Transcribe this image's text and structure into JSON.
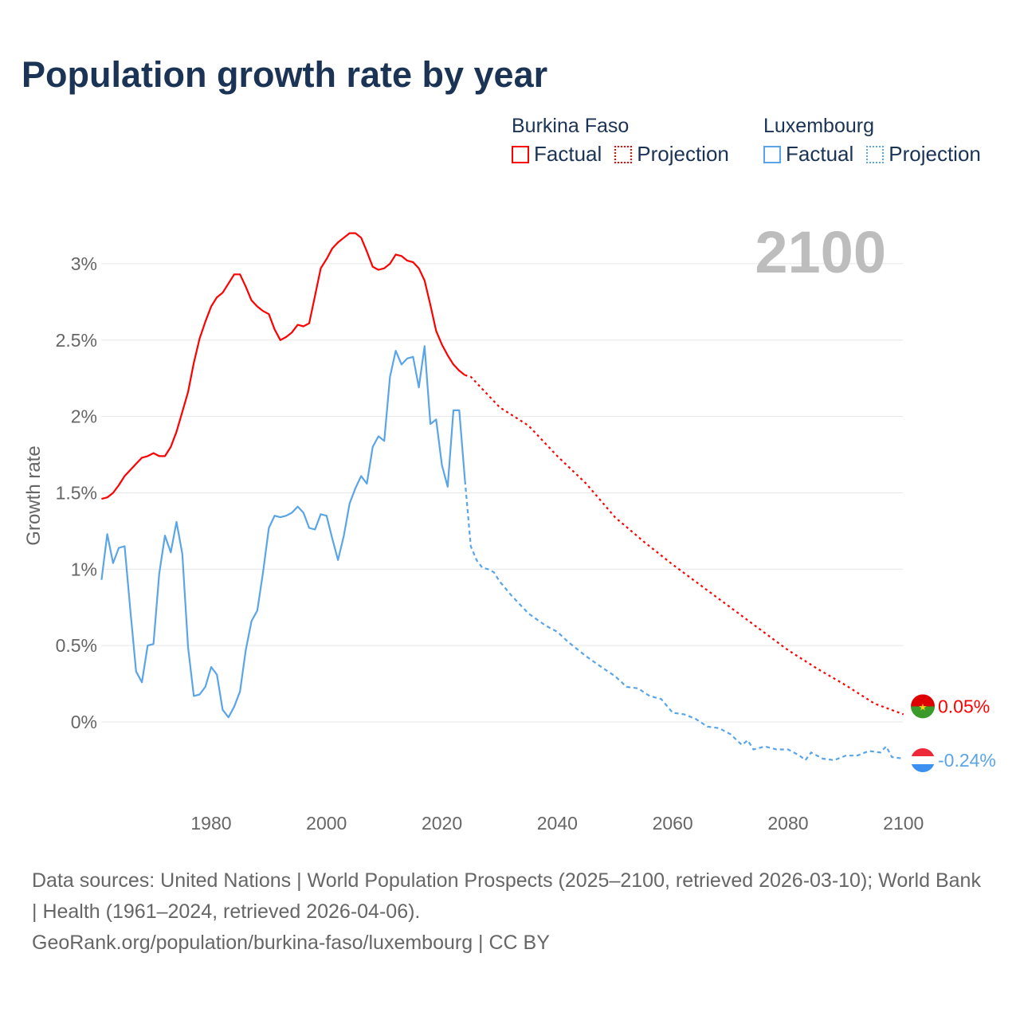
{
  "title": "Population growth rate by year",
  "legend": {
    "groups": [
      {
        "name": "Burkina Faso",
        "factual": "Factual",
        "projection": "Projection",
        "color": "#ff0000"
      },
      {
        "name": "Luxembourg",
        "factual": "Factual",
        "projection": "Projection",
        "color": "#5aa5e8"
      }
    ]
  },
  "current_year": "2100",
  "footer": {
    "sources": "Data sources: United Nations | World Population Prospects (2025–2100, retrieved 2026-03-10); World Bank | Health (1961–2024, retrieved 2026-04-06).",
    "credit": "GeoRank.org/population/burkina-faso/luxembourg | CC BY"
  },
  "chart_data": {
    "type": "line",
    "title": "Population growth rate by year",
    "xlabel": "",
    "ylabel": "Growth rate",
    "xlim": [
      1961,
      2100
    ],
    "ylim": [
      -0.45,
      3.3
    ],
    "grid": true,
    "x_ticks": [
      1980,
      2000,
      2020,
      2040,
      2060,
      2080,
      2100
    ],
    "x_tick_labels": [
      "1980",
      "2000",
      "2020",
      "2040",
      "2060",
      "2080",
      "2100"
    ],
    "y_ticks": [
      0,
      0.5,
      1,
      1.5,
      2,
      2.5,
      3
    ],
    "y_tick_labels": [
      "0%",
      "0.5%",
      "1%",
      "1.5%",
      "2%",
      "2.5%",
      "3%"
    ],
    "series": [
      {
        "name": "Burkina Faso",
        "color": "#ff0000",
        "end_label": "0.05%",
        "factual": {
          "x": [
            1961,
            1962,
            1963,
            1964,
            1965,
            1966,
            1967,
            1968,
            1969,
            1970,
            1971,
            1972,
            1973,
            1974,
            1975,
            1976,
            1977,
            1978,
            1979,
            1980,
            1981,
            1982,
            1983,
            1984,
            1985,
            1986,
            1987,
            1988,
            1989,
            1990,
            1991,
            1992,
            1993,
            1994,
            1995,
            1996,
            1997,
            1998,
            1999,
            2000,
            2001,
            2002,
            2003,
            2004,
            2005,
            2006,
            2007,
            2008,
            2009,
            2010,
            2011,
            2012,
            2013,
            2014,
            2015,
            2016,
            2017,
            2018,
            2019,
            2020,
            2021,
            2022,
            2023,
            2024
          ],
          "y": [
            1.46,
            1.47,
            1.5,
            1.55,
            1.61,
            1.65,
            1.69,
            1.73,
            1.74,
            1.76,
            1.74,
            1.74,
            1.8,
            1.9,
            2.03,
            2.16,
            2.35,
            2.51,
            2.62,
            2.72,
            2.78,
            2.81,
            2.87,
            2.93,
            2.93,
            2.85,
            2.76,
            2.72,
            2.69,
            2.67,
            2.57,
            2.5,
            2.52,
            2.55,
            2.6,
            2.59,
            2.61,
            2.79,
            2.97,
            3.03,
            3.1,
            3.14,
            3.17,
            3.2,
            3.2,
            3.17,
            3.08,
            2.98,
            2.96,
            2.97,
            3.0,
            3.06,
            3.05,
            3.02,
            3.01,
            2.97,
            2.89,
            2.73,
            2.56,
            2.47,
            2.4,
            2.34,
            2.3,
            2.27
          ]
        },
        "projection": {
          "x": [
            2024,
            2025,
            2030,
            2035,
            2040,
            2045,
            2050,
            2055,
            2060,
            2065,
            2070,
            2075,
            2080,
            2085,
            2090,
            2095,
            2100
          ],
          "y": [
            2.27,
            2.26,
            2.06,
            1.94,
            1.74,
            1.56,
            1.34,
            1.18,
            1.03,
            0.89,
            0.75,
            0.61,
            0.47,
            0.35,
            0.24,
            0.12,
            0.05
          ]
        }
      },
      {
        "name": "Luxembourg",
        "color": "#5aa5e8",
        "end_label": "-0.24%",
        "factual": {
          "x": [
            1961,
            1962,
            1963,
            1964,
            1965,
            1966,
            1967,
            1968,
            1969,
            1970,
            1971,
            1972,
            1973,
            1974,
            1975,
            1976,
            1977,
            1978,
            1979,
            1980,
            1981,
            1982,
            1983,
            1984,
            1985,
            1986,
            1987,
            1988,
            1989,
            1990,
            1991,
            1992,
            1993,
            1994,
            1995,
            1996,
            1997,
            1998,
            1999,
            2000,
            2001,
            2002,
            2003,
            2004,
            2005,
            2006,
            2007,
            2008,
            2009,
            2010,
            2011,
            2012,
            2013,
            2014,
            2015,
            2016,
            2017,
            2018,
            2019,
            2020,
            2021,
            2022,
            2023,
            2024
          ],
          "y": [
            0.93,
            1.23,
            1.04,
            1.14,
            1.15,
            0.73,
            0.33,
            0.26,
            0.5,
            0.51,
            0.97,
            1.22,
            1.11,
            1.31,
            1.1,
            0.49,
            0.17,
            0.18,
            0.23,
            0.36,
            0.31,
            0.08,
            0.03,
            0.1,
            0.2,
            0.47,
            0.66,
            0.73,
            0.98,
            1.27,
            1.35,
            1.34,
            1.35,
            1.37,
            1.41,
            1.37,
            1.27,
            1.26,
            1.36,
            1.35,
            1.2,
            1.06,
            1.22,
            1.43,
            1.53,
            1.61,
            1.56,
            1.8,
            1.87,
            1.84,
            2.26,
            2.43,
            2.34,
            2.38,
            2.39,
            2.19,
            2.46,
            1.95,
            1.98,
            1.68,
            1.54,
            2.04,
            2.04,
            1.58
          ]
        },
        "projection": {
          "x": [
            2024,
            2025,
            2026,
            2027,
            2028,
            2029,
            2030,
            2032,
            2035,
            2038,
            2040,
            2042,
            2045,
            2048,
            2050,
            2052,
            2054,
            2056,
            2058,
            2060,
            2062,
            2064,
            2066,
            2068,
            2070,
            2072,
            2073,
            2074,
            2076,
            2078,
            2080,
            2082,
            2083,
            2084,
            2086,
            2088,
            2090,
            2092,
            2094,
            2096,
            2097,
            2098,
            2100
          ],
          "y": [
            1.58,
            1.15,
            1.06,
            1.01,
            1.0,
            0.98,
            0.92,
            0.83,
            0.71,
            0.63,
            0.59,
            0.52,
            0.43,
            0.35,
            0.3,
            0.23,
            0.22,
            0.17,
            0.15,
            0.06,
            0.05,
            0.02,
            -0.03,
            -0.04,
            -0.08,
            -0.15,
            -0.12,
            -0.18,
            -0.16,
            -0.18,
            -0.18,
            -0.22,
            -0.25,
            -0.2,
            -0.24,
            -0.25,
            -0.22,
            -0.22,
            -0.19,
            -0.2,
            -0.16,
            -0.23,
            -0.24
          ]
        }
      }
    ]
  }
}
